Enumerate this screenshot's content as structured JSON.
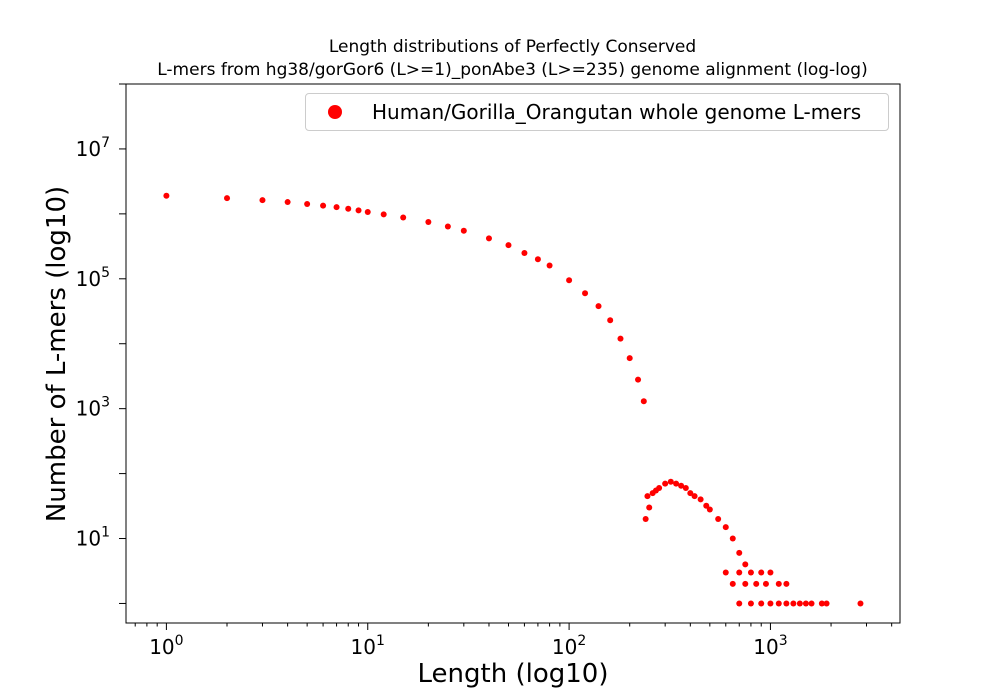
{
  "chart_data": {
    "type": "scatter",
    "title_lines": [
      "Length distributions of Perfectly Conserved",
      "L-mers from hg38/gorGor6 (L>=1)_ponAbe3 (L>=235) genome alignment (log-log)"
    ],
    "xlabel": "Length (log10)",
    "ylabel": "Number of L-mers (log10)",
    "xscale": "log",
    "yscale": "log",
    "xlim": [
      0.63,
      4400
    ],
    "ylim": [
      0.5,
      100000000
    ],
    "x_tick_labels": [
      "10",
      "10",
      "10",
      "10"
    ],
    "x_tick_exponents": [
      "0",
      "1",
      "2",
      "3"
    ],
    "y_tick_labels": [
      "10",
      "10",
      "10",
      "10"
    ],
    "y_tick_exponents": [
      "1",
      "3",
      "5",
      "7"
    ],
    "grid": false,
    "legend": {
      "placement": "top-right"
    },
    "series": [
      {
        "name": "Human/Gorilla_Orangutan whole genome L-mers",
        "color": "#ff0000",
        "points": [
          [
            1,
            1900000
          ],
          [
            2,
            1750000
          ],
          [
            3,
            1630000
          ],
          [
            4,
            1520000
          ],
          [
            5,
            1420000
          ],
          [
            6,
            1340000
          ],
          [
            7,
            1270000
          ],
          [
            8,
            1200000
          ],
          [
            9,
            1130000
          ],
          [
            10,
            1070000
          ],
          [
            12,
            980000
          ],
          [
            15,
            880000
          ],
          [
            20,
            750000
          ],
          [
            25,
            640000
          ],
          [
            30,
            550000
          ],
          [
            40,
            420000
          ],
          [
            50,
            330000
          ],
          [
            60,
            250000
          ],
          [
            70,
            200000
          ],
          [
            80,
            160000
          ],
          [
            100,
            95000
          ],
          [
            120,
            60000
          ],
          [
            140,
            38000
          ],
          [
            160,
            23000
          ],
          [
            180,
            12000
          ],
          [
            200,
            6000
          ],
          [
            220,
            2800
          ],
          [
            235,
            1300
          ],
          [
            240,
            20
          ],
          [
            245,
            45
          ],
          [
            250,
            30
          ],
          [
            260,
            50
          ],
          [
            270,
            55
          ],
          [
            280,
            60
          ],
          [
            300,
            70
          ],
          [
            320,
            75
          ],
          [
            340,
            70
          ],
          [
            360,
            65
          ],
          [
            380,
            60
          ],
          [
            400,
            50
          ],
          [
            420,
            45
          ],
          [
            450,
            40
          ],
          [
            480,
            32
          ],
          [
            500,
            28
          ],
          [
            550,
            20
          ],
          [
            600,
            15
          ],
          [
            650,
            10
          ],
          [
            700,
            6
          ],
          [
            750,
            4
          ],
          [
            600,
            3
          ],
          [
            700,
            3
          ],
          [
            800,
            3
          ],
          [
            900,
            3
          ],
          [
            1000,
            3
          ],
          [
            650,
            2
          ],
          [
            750,
            2
          ],
          [
            850,
            2
          ],
          [
            950,
            2
          ],
          [
            1100,
            2
          ],
          [
            1200,
            2
          ],
          [
            700,
            1
          ],
          [
            800,
            1
          ],
          [
            900,
            1
          ],
          [
            1000,
            1
          ],
          [
            1100,
            1
          ],
          [
            1200,
            1
          ],
          [
            1300,
            1
          ],
          [
            1400,
            1
          ],
          [
            1500,
            1
          ],
          [
            1600,
            1
          ],
          [
            1800,
            1
          ],
          [
            1900,
            1
          ],
          [
            2800,
            1
          ]
        ]
      }
    ]
  }
}
